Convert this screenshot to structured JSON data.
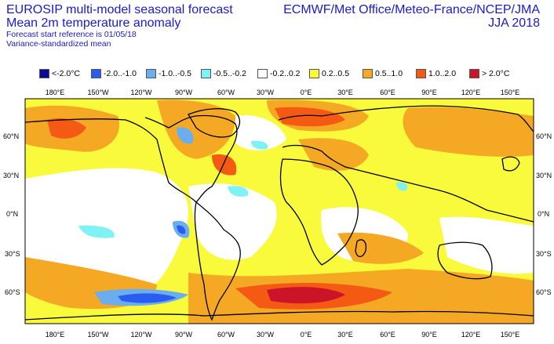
{
  "header": {
    "title_line1": "EUROSIP multi-model seasonal forecast",
    "title_line2": "Mean 2m temperature anomaly",
    "subtitle_line1": "Forecast start reference is 01/05/18",
    "subtitle_line2": "Variance-standardized mean",
    "centres": "ECMWF/Met Office/Meteo-France/NCEP/JMA",
    "season": "JJA 2018"
  },
  "legend": [
    {
      "label": "<-2.0°C",
      "color": "#0a0a96"
    },
    {
      "label": "-2.0..-1.0",
      "color": "#2a5cf0"
    },
    {
      "label": "-1.0..-0.5",
      "color": "#6aaef0"
    },
    {
      "label": "-0.5..-0.2",
      "color": "#7ef2f4"
    },
    {
      "label": "-0.2..0.2",
      "color": "#ffffff"
    },
    {
      "label": "0.2..0.5",
      "color": "#fafa3c"
    },
    {
      "label": "0.5..1.0",
      "color": "#f5a823"
    },
    {
      "label": "1.0..2.0",
      "color": "#f55a14"
    },
    {
      "label": "> 2.0°C",
      "color": "#cc1428"
    }
  ],
  "map": {
    "lon_labels": [
      "180°E",
      "150°W",
      "120°W",
      "90°W",
      "60°W",
      "30°W",
      "0°E",
      "30°E",
      "60°E",
      "90°E",
      "120°E",
      "150°E"
    ],
    "lat_labels": [
      "60°N",
      "30°N",
      "0°N",
      "30°S",
      "60°S"
    ]
  }
}
